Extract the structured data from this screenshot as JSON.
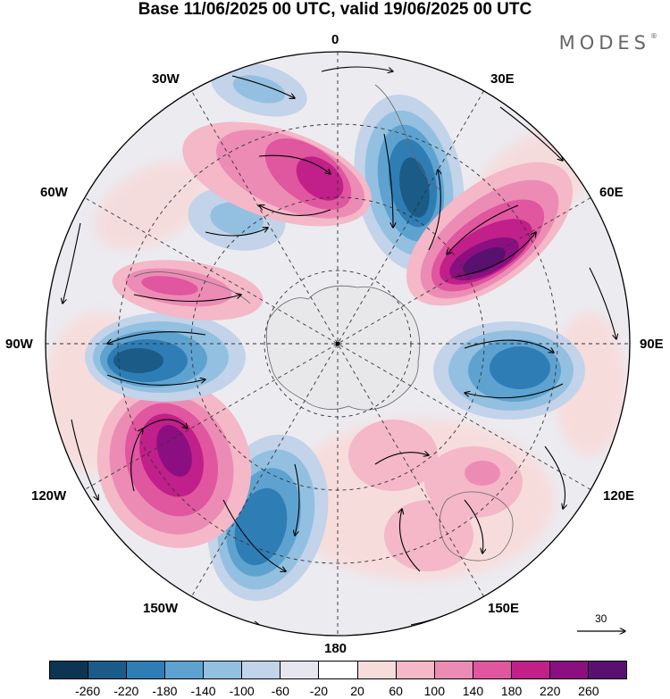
{
  "title": "Base 11/06/2025 00 UTC, valid 19/06/2025 00 UTC",
  "brand": "MODES",
  "brand_mark": "®",
  "longitude_labels": {
    "lon_0": "0",
    "lon_30e": "30E",
    "lon_60e": "60E",
    "lon_90e": "90E",
    "lon_120e": "120E",
    "lon_150e": "150E",
    "lon_180": "180",
    "lon_150w": "150W",
    "lon_120w": "120W",
    "lon_90w": "90W",
    "lon_60w": "60W",
    "lon_30w": "30W"
  },
  "wind_reference": {
    "value": "30"
  },
  "colorbar": {
    "colors": [
      "#0b3553",
      "#1a5b87",
      "#2f7db5",
      "#5ea3d0",
      "#93c0e0",
      "#c2d3ea",
      "#e6e6ef",
      "#ffffff",
      "#f7dcdc",
      "#f4b8c8",
      "#ec8cb5",
      "#e0569f",
      "#c11f89",
      "#8b0f81",
      "#5a1070"
    ],
    "ticks": [
      "-260",
      "-220",
      "-180",
      "-140",
      "-100",
      "-60",
      "-20",
      "20",
      "60",
      "100",
      "140",
      "180",
      "220",
      "260"
    ]
  },
  "field_anomalies": [
    {
      "name": "blue-lobe-0e",
      "value": -240
    },
    {
      "name": "purple-lobe-45e",
      "value": 270
    },
    {
      "name": "blue-lobe-100e",
      "value": -200
    },
    {
      "name": "pink-lobe-140e",
      "value": 80
    },
    {
      "name": "pink-lobe-135e",
      "value": 100
    },
    {
      "name": "blue-lobe-160w",
      "value": -200
    },
    {
      "name": "purple-lobe-130w",
      "value": 240
    },
    {
      "name": "blue-lobe-95w",
      "value": -220
    },
    {
      "name": "pink-lobe-75w",
      "value": 150
    },
    {
      "name": "blue-lobe-60w",
      "value": -100
    },
    {
      "name": "magenta-lobe-20w",
      "value": 220
    },
    {
      "name": "blue-lobe-25w",
      "value": -100
    }
  ]
}
